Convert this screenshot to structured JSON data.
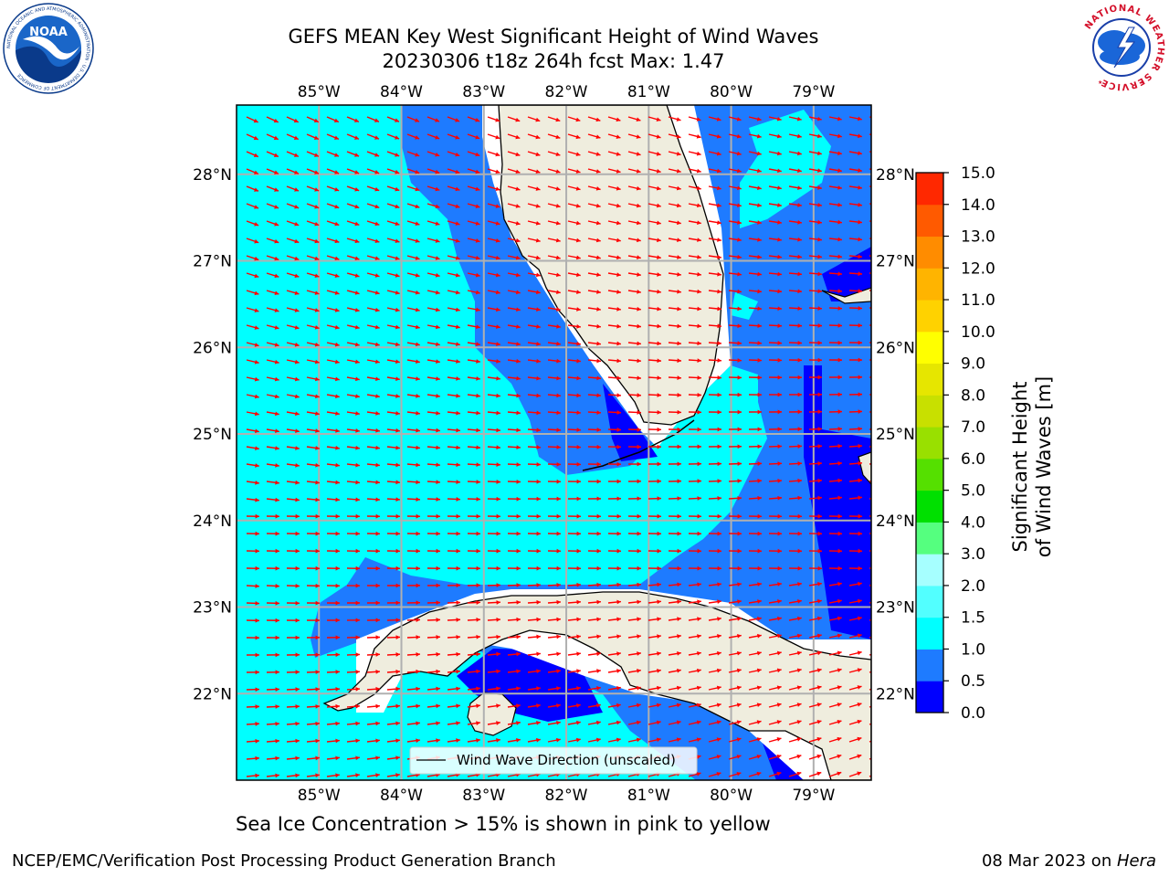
{
  "header": {
    "title_line1": "GEFS MEAN Key West Significant Height of Wind Waves",
    "title_line2": "20230306 t18z 264h fcst   Max: 1.47"
  },
  "map": {
    "lon_ticks": [
      "85°W",
      "84°W",
      "83°W",
      "82°W",
      "81°W",
      "80°W",
      "79°W"
    ],
    "lat_ticks": [
      "28°N",
      "27°N",
      "26°N",
      "25°N",
      "24°N",
      "23°N",
      "22°N"
    ],
    "lon_values": [
      -85,
      -84,
      -83,
      -82,
      -81,
      -80,
      -79
    ],
    "lat_values": [
      28,
      27,
      26,
      25,
      24,
      23,
      22
    ],
    "lon_range": [
      -86,
      -78.3
    ],
    "lat_range": [
      21,
      28.8
    ],
    "legend_label": "Wind Wave Direction (unscaled)",
    "arrow_color": "#ff0000",
    "land_color": "#efedde",
    "grid_color": "#b0b0b0"
  },
  "colorbar": {
    "label": "Significant Height of Wind Waves [m]",
    "tick_labels": [
      "0.0",
      "0.5",
      "1.0",
      "1.5",
      "2.0",
      "3.0",
      "4.0",
      "5.0",
      "6.0",
      "7.0",
      "8.0",
      "9.0",
      "10.0",
      "11.0",
      "12.0",
      "13.0",
      "14.0",
      "15.0"
    ],
    "colors": [
      "#0000ff",
      "#1e7bff",
      "#00ffff",
      "#52ffff",
      "#a6ffff",
      "#55ff7f",
      "#00e000",
      "#55e000",
      "#99e000",
      "#c8e000",
      "#e6e600",
      "#ffff00",
      "#ffd200",
      "#ffb400",
      "#ff8c00",
      "#ff5a00",
      "#ff2800"
    ]
  },
  "footer": {
    "note": "Sea Ice Concentration > 15% is shown in pink to yellow",
    "left": "NCEP/EMC/Verification Post Processing Product Generation Branch",
    "right_date": "08 Mar 2023 on ",
    "right_host": "Hera"
  },
  "logos": {
    "noaa_text": "NOAA",
    "noaa_ring": "NATIONAL OCEANIC AND ATMOSPHERIC ADMINISTRATION · U.S. DEPARTMENT OF COMMERCE",
    "nws_ring": "NATIONAL WEATHER SERVICE"
  }
}
